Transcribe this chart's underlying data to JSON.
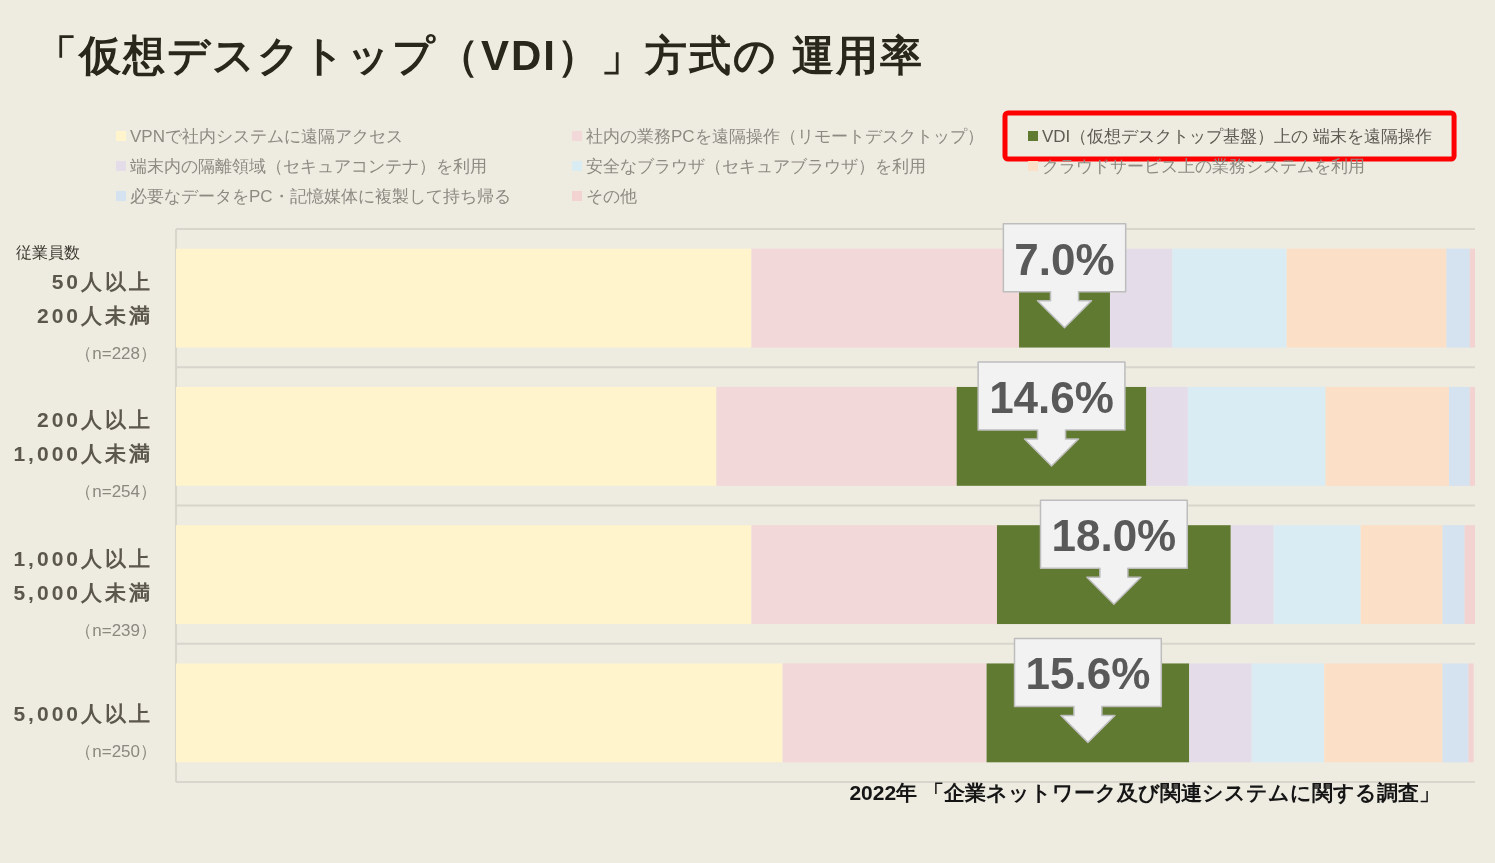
{
  "chart_data": {
    "type": "bar",
    "orientation": "horizontal",
    "stacked": true,
    "title": "「仮想デスクトップ（VDI）」方式の 運用率",
    "ylabel": "従業員数",
    "categories": [
      "50人以上200人未満（n=228）",
      "200人以上1,000人未満（n=254）",
      "1,000人以上5,000人未満（n=239）",
      "5,000人以上（n=250）"
    ],
    "series": [
      {
        "name": "VPNで社内システムに遠隔アクセス",
        "color": "#fff4cc",
        "values": [
          44.3,
          41.6,
          44.3,
          46.7
        ]
      },
      {
        "name": "社内の業務PCを遠隔操作（リモートデスクトップ）",
        "color": "#f2d8d8",
        "values": [
          20.6,
          18.5,
          18.9,
          15.7
        ]
      },
      {
        "name": "VDI（仮想デスクトップ基盤）上の 端末を遠隔操作",
        "color": "#617a32",
        "values": [
          7.0,
          14.6,
          18.0,
          15.6
        ],
        "value_labels": [
          "7.0%",
          "14.6%",
          "18.0%",
          "15.6%"
        ]
      },
      {
        "name": "端末内の隔離領域（セキュアコンテナ）を利用",
        "color": "#e4dde9",
        "values": [
          4.8,
          3.2,
          3.3,
          4.8
        ]
      },
      {
        "name": "安全なブラウザ（セキュアブラウザ）を利用",
        "color": "#daecf3",
        "values": [
          8.8,
          10.6,
          6.7,
          5.6
        ]
      },
      {
        "name": "クラウドサービス上の業務システムを利用",
        "color": "#fcdfc7",
        "values": [
          12.3,
          9.5,
          6.3,
          9.1
        ]
      },
      {
        "name": "必要なデータをPC・記憶媒体に複製して持ち帰る",
        "color": "#d5e2ef",
        "values": [
          1.8,
          1.6,
          1.7,
          2.0
        ]
      },
      {
        "name": "その他",
        "color": "#f3d2d2",
        "values": [
          0.4,
          0.4,
          0.8,
          0.4
        ]
      }
    ],
    "xlim": [
      0,
      100
    ],
    "tick_labels": "y",
    "legend": "top",
    "grid": "y",
    "annotations": [
      "2022年 「企業ネットワーク及び関連システムに関する調査」"
    ]
  }
}
